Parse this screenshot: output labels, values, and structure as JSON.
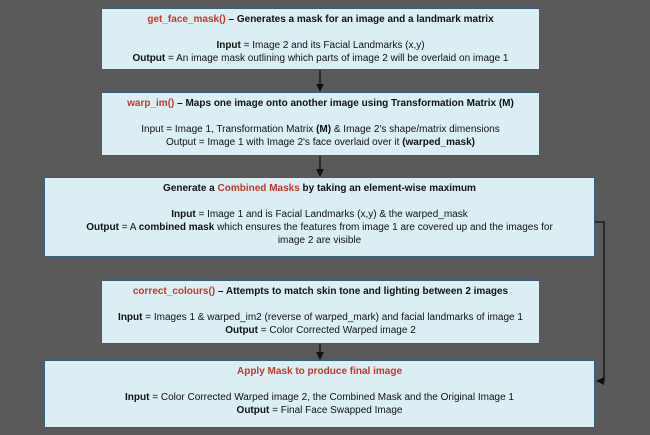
{
  "steps": [
    {
      "name": "get_face_mask()",
      "title_rest": " – Generates a mask for an image and a landmark matrix",
      "input_label": "Input",
      "input_text": " = Image 2 and its Facial Landmarks (x,y)",
      "output_label": "Output",
      "output_text": " = An image mask outlining which parts of image 2 will be overlaid on image 1"
    },
    {
      "name": "warp_im()",
      "title_rest": " – Maps one image onto another image using Transformation Matrix (M)",
      "input_a": "Input = Image 1, Transformation Matrix ",
      "input_b": "(M)",
      "input_c": " & Image 2's shape/matrix dimensions",
      "output_a": "Output = Image 1 with Image 2's face overlaid over it ",
      "output_b": "(warped_mask)"
    },
    {
      "title_a": "Generate a ",
      "title_highlight": "Combined Masks",
      "title_b": " by taking an element-wise maximum",
      "input_label": "Input",
      "input_text": " = Image 1 and is Facial Landmarks (x,y) & the warped_mask",
      "output_label": "Output",
      "output_a": " = A ",
      "output_b": "combined mask",
      "output_c": " which ensures the features from image 1 are covered up and the images for",
      "output_d": "image 2 are visible"
    },
    {
      "name": "correct_colours()",
      "title_rest": " – Attempts to match skin tone and lighting between 2 images",
      "input_label": "Input",
      "input_text": " = Images 1 & warped_im2 (reverse of warped_mark) and facial landmarks of image 1",
      "output_label": "Output",
      "output_text": " = Color Corrected Warped image 2"
    },
    {
      "title": "Apply Mask to produce final image",
      "input_label": "Input",
      "input_text": " = Color Corrected Warped image 2, the Combined Mask and the Original Image 1",
      "output_label": "Output",
      "output_text": " = Final Face Swapped Image"
    }
  ],
  "colors": {
    "background": "#5a5a5a",
    "box_fill": "#daeef3",
    "box_border": "#355f7a",
    "highlight": "#c0392b",
    "connector": "#111111"
  }
}
